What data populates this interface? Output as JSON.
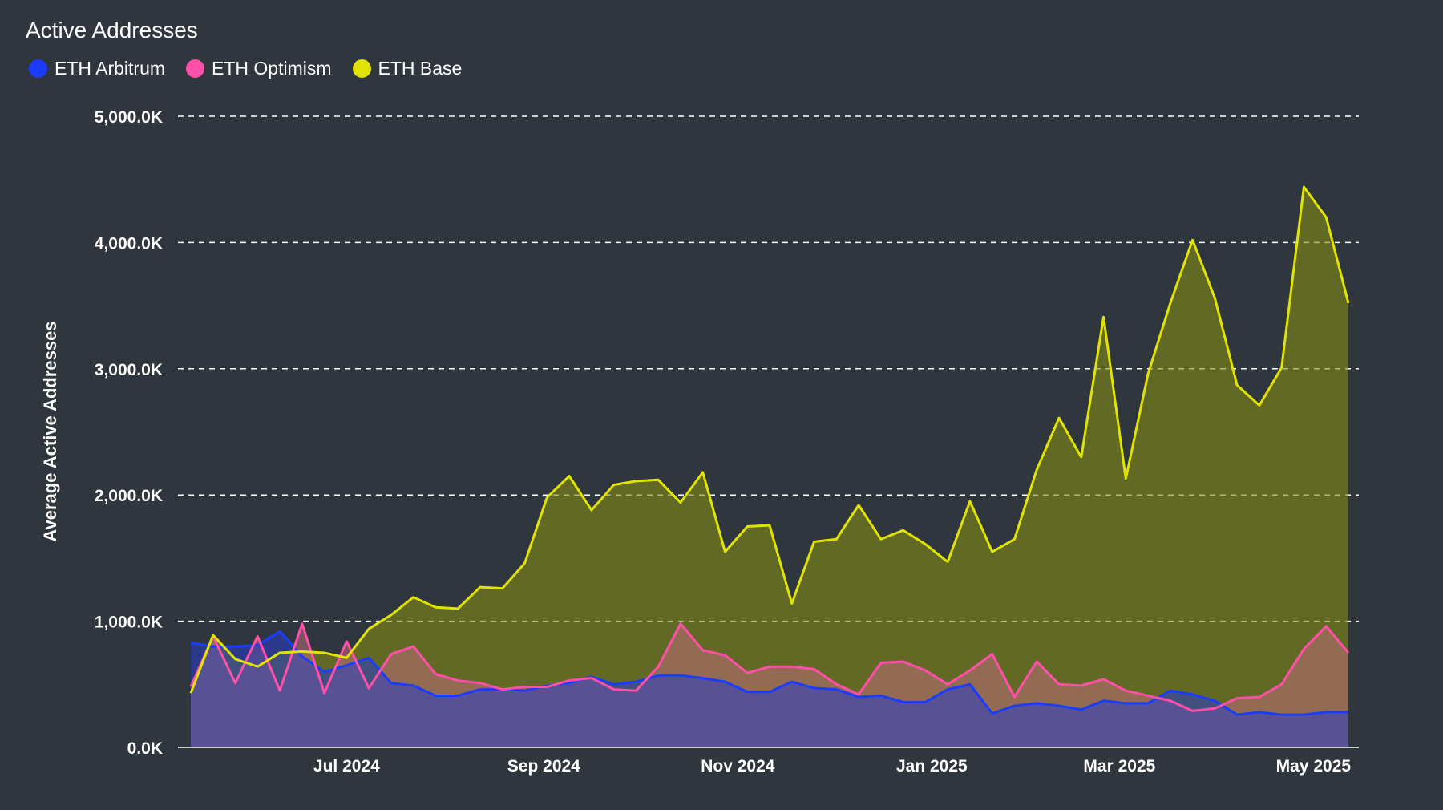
{
  "chart_data": {
    "type": "area",
    "title": "Active Addresses",
    "ylabel": "Average Active Addresses",
    "xlabel": "",
    "ylim": [
      0,
      5000
    ],
    "y_unit": "K",
    "y_ticks": [
      0,
      1000,
      2000,
      3000,
      4000,
      5000
    ],
    "y_tick_labels": [
      "0.0K",
      "1,000.0K",
      "2,000.0K",
      "3,000.0K",
      "4,000.0K",
      "5,000.0K"
    ],
    "x_start": "2024-05-13",
    "x_interval_days": 7,
    "x_ticks": [
      {
        "label": "Jul 2024",
        "date": "2024-07-01"
      },
      {
        "label": "Sep 2024",
        "date": "2024-09-01"
      },
      {
        "label": "Nov 2024",
        "date": "2024-11-01"
      },
      {
        "label": "Jan 2025",
        "date": "2025-01-01"
      },
      {
        "label": "Mar 2025",
        "date": "2025-03-01"
      },
      {
        "label": "May 2025",
        "date": "2025-05-01"
      }
    ],
    "grid": true,
    "legend_position": "top-left",
    "series": [
      {
        "name": "ETH Arbitrum",
        "color": "#1a3cff",
        "fill": "rgba(40,60,200,0.55)",
        "values": [
          830,
          800,
          800,
          810,
          920,
          720,
          600,
          650,
          710,
          510,
          490,
          410,
          410,
          460,
          460,
          450,
          490,
          510,
          560,
          500,
          520,
          570,
          570,
          550,
          520,
          440,
          440,
          520,
          470,
          460,
          400,
          410,
          360,
          360,
          460,
          500,
          270,
          330,
          350,
          330,
          300,
          370,
          350,
          350,
          450,
          420,
          370,
          260,
          280,
          260,
          260,
          280,
          280
        ]
      },
      {
        "name": "ETH Optimism",
        "color": "#ff4fa8",
        "fill": "rgba(190,110,120,0.55)",
        "values": [
          480,
          880,
          510,
          880,
          450,
          980,
          430,
          840,
          470,
          740,
          800,
          580,
          530,
          510,
          460,
          480,
          480,
          530,
          550,
          460,
          450,
          640,
          980,
          770,
          730,
          590,
          640,
          640,
          620,
          500,
          420,
          670,
          680,
          610,
          500,
          610,
          740,
          400,
          680,
          500,
          490,
          540,
          450,
          410,
          370,
          290,
          310,
          390,
          400,
          500,
          780,
          960,
          750
        ]
      },
      {
        "name": "ETH Base",
        "color": "#e0e400",
        "fill": "rgba(130,140,20,0.6)",
        "values": [
          430,
          890,
          700,
          640,
          750,
          760,
          750,
          710,
          940,
          1050,
          1190,
          1110,
          1100,
          1270,
          1260,
          1460,
          1980,
          2150,
          1880,
          2080,
          2110,
          2120,
          1940,
          2180,
          1550,
          1750,
          1760,
          1140,
          1630,
          1650,
          1920,
          1650,
          1720,
          1610,
          1470,
          1950,
          1550,
          1650,
          2200,
          2610,
          2300,
          3410,
          2130,
          2960,
          3520,
          4020,
          3560,
          2870,
          2710,
          3010,
          4440,
          4200,
          3520
        ]
      }
    ]
  }
}
